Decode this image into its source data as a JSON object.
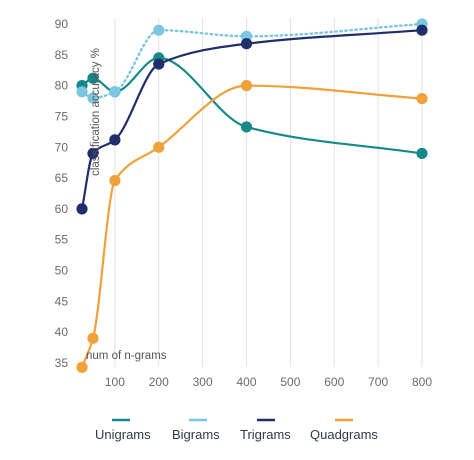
{
  "chart_data": {
    "type": "line",
    "title": "",
    "xlabel": "num of n-grams",
    "ylabel": "classification accuracy %",
    "xlim": [
      25,
      800
    ],
    "ylim": [
      35,
      90
    ],
    "x_ticks": [
      100,
      200,
      300,
      400,
      500,
      600,
      700,
      800
    ],
    "y_ticks": [
      35,
      40,
      45,
      50,
      55,
      60,
      65,
      70,
      75,
      80,
      85,
      90
    ],
    "grid": "vertical",
    "legend_position": "bottom",
    "series": [
      {
        "name": "Unigrams",
        "color": "#17898a",
        "style": "solid",
        "x": [
          25,
          50,
          100,
          200,
          400,
          800
        ],
        "values": [
          80,
          81.2,
          79,
          84.5,
          73.3,
          69
        ]
      },
      {
        "name": "Bigrams",
        "color": "#7cc6df",
        "style": "dotted",
        "x": [
          25,
          50,
          100,
          200,
          400,
          800
        ],
        "values": [
          79,
          78,
          79,
          89,
          88,
          90
        ]
      },
      {
        "name": "Trigrams",
        "color": "#1f2f6b",
        "style": "solid",
        "x": [
          25,
          50,
          100,
          200,
          400,
          800
        ],
        "values": [
          60,
          69,
          71.2,
          83.5,
          86.8,
          89
        ]
      },
      {
        "name": "Quadgrams",
        "color": "#f0a13a",
        "style": "solid",
        "x": [
          25,
          50,
          100,
          200,
          400,
          800
        ],
        "values": [
          34.3,
          39,
          64.6,
          70,
          80,
          77.9
        ]
      }
    ]
  }
}
